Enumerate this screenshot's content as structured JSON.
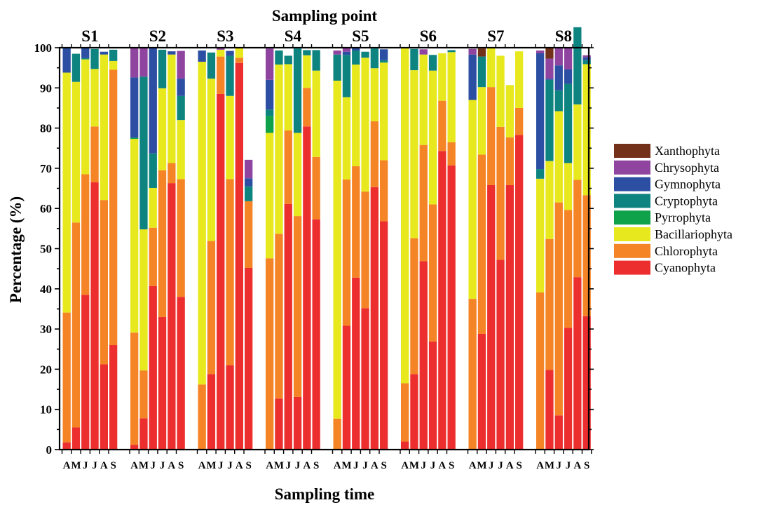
{
  "chart_data": {
    "type": "bar",
    "stacked": true,
    "title": "Sampling point",
    "xlabel": "Sampling time",
    "ylabel": "Percentage (%)",
    "ylim": [
      0,
      100
    ],
    "yticks": [
      0,
      10,
      20,
      30,
      40,
      50,
      60,
      70,
      80,
      90,
      100
    ],
    "grid": false,
    "legend_position": "right",
    "groups": [
      "S1",
      "S2",
      "S3",
      "S4",
      "S5",
      "S6",
      "S7",
      "S8"
    ],
    "months": [
      "A",
      "M",
      "J",
      "J",
      "A",
      "S"
    ],
    "layers": [
      {
        "name": "Cyanophyta",
        "color": "#ED2E2E"
      },
      {
        "name": "Chlorophyta",
        "color": "#F58426"
      },
      {
        "name": "Bacillariophyta",
        "color": "#E8E81E"
      },
      {
        "name": "Pyrrophyta",
        "color": "#10A24A"
      },
      {
        "name": "Cryptophyta",
        "color": "#0E8480"
      },
      {
        "name": "Gymnophyta",
        "color": "#2C4FA3"
      },
      {
        "name": "Chrysophyta",
        "color": "#8F45A0"
      },
      {
        "name": "Xanthophyta",
        "color": "#74311A"
      }
    ],
    "legend_order": [
      "Xanthophyta",
      "Chrysophyta",
      "Gymnophyta",
      "Cryptophyta",
      "Pyrrophyta",
      "Bacillariophyta",
      "Chlorophyta",
      "Cyanophyta"
    ],
    "series": [
      {
        "name": "Cyanophyta",
        "values": [
          [
            1.8,
            5.5,
            38.5,
            66.5,
            21.2,
            26
          ],
          [
            1.2,
            7.8,
            40.7,
            33,
            66.3,
            38
          ],
          [
            0,
            18.8,
            88.5,
            21,
            96.2,
            45.2
          ],
          [
            0,
            12.7,
            61.1,
            13.1,
            80.4,
            57.3
          ],
          [
            0,
            30.8,
            42.8,
            35.2,
            65.3,
            56.8
          ],
          [
            2,
            18.8,
            46.9,
            26.9,
            74.3,
            70.7
          ],
          [
            0,
            28.8,
            65.8,
            47.2,
            65.8,
            78.3
          ],
          [
            0,
            19.8,
            8.5,
            30.3,
            42.9,
            33.2
          ]
        ]
      },
      {
        "name": "Chlorophyta",
        "values": [
          [
            32.3,
            51,
            30,
            13.9,
            40.9,
            68.5
          ],
          [
            27.9,
            11.9,
            14.5,
            36.5,
            5,
            29.3
          ],
          [
            16.2,
            33.1,
            9.3,
            46.3,
            1.3,
            16.6
          ],
          [
            47.6,
            41,
            18.3,
            45,
            9.6,
            15.5
          ],
          [
            7.7,
            36.4,
            27.7,
            29,
            16.4,
            15.2
          ],
          [
            14.5,
            33.8,
            28.9,
            34.1,
            12.5,
            5.8
          ],
          [
            37.5,
            44.6,
            24.4,
            33.1,
            11.9,
            6.7
          ],
          [
            39.1,
            32.6,
            53,
            29.3,
            24.2,
            30.1
          ]
        ]
      },
      {
        "name": "Bacillariophyta",
        "values": [
          [
            59.7,
            35,
            28.6,
            14.3,
            36.2,
            2.2
          ],
          [
            48.2,
            35.1,
            9.9,
            20.4,
            27,
            14.7
          ],
          [
            80.3,
            40.4,
            1.7,
            20.7,
            2.5,
            0
          ],
          [
            31.2,
            42.1,
            16.5,
            20.7,
            8.1,
            21.5
          ],
          [
            84.1,
            20.5,
            25.3,
            33.3,
            13.2,
            24.3
          ],
          [
            83.5,
            41.8,
            22.5,
            33.3,
            11.8,
            22.4
          ],
          [
            49.5,
            16.8,
            9.8,
            17.7,
            13,
            14.1
          ],
          [
            28.3,
            19.4,
            22.7,
            11.7,
            18.8,
            32.6
          ]
        ]
      },
      {
        "name": "Pyrrophyta",
        "values": [
          [
            0,
            0,
            0,
            0,
            0,
            0
          ],
          [
            0.3,
            0,
            0,
            0,
            0,
            0
          ],
          [
            0,
            0,
            0,
            0,
            0,
            0
          ],
          [
            4.2,
            0,
            0,
            0,
            0,
            0
          ],
          [
            0,
            0,
            0,
            0,
            0,
            0
          ],
          [
            0,
            0,
            0,
            0,
            0,
            0
          ],
          [
            0,
            0,
            0,
            0,
            0,
            0
          ],
          [
            0,
            0,
            0,
            0,
            0,
            0
          ]
        ]
      },
      {
        "name": "Cryptophyta",
        "values": [
          [
            0,
            7,
            0.3,
            5,
            0,
            2.8
          ],
          [
            0,
            38,
            8.6,
            9.6,
            0,
            6
          ],
          [
            0,
            6.5,
            0,
            10,
            0,
            3.7
          ],
          [
            1.6,
            3.5,
            2.1,
            21,
            1.3,
            5.1
          ],
          [
            6.5,
            10.5,
            3.5,
            1.5,
            4.9,
            0.6
          ],
          [
            0,
            5.3,
            0,
            3.9,
            0,
            0.5
          ],
          [
            0,
            7.6,
            0,
            0,
            0,
            0
          ],
          [
            2.4,
            20.2,
            5.2,
            19.7,
            19.2,
            1
          ]
        ]
      },
      {
        "name": "Gymnophyta",
        "values": [
          [
            6.2,
            0,
            2.6,
            0,
            0.7,
            0
          ],
          [
            15,
            0,
            26.2,
            0,
            0.8,
            4.3
          ],
          [
            2.8,
            0,
            0,
            1.2,
            0,
            2
          ],
          [
            7.4,
            0,
            0,
            0,
            0,
            0
          ],
          [
            0,
            0.8,
            0.8,
            0,
            0,
            2.7
          ],
          [
            0,
            0,
            0,
            0,
            0,
            0
          ],
          [
            11.3,
            0,
            0,
            0,
            0,
            0
          ],
          [
            28.8,
            0.3,
            6.2,
            3.6,
            0,
            0.7
          ]
        ]
      },
      {
        "name": "Chrysophyta",
        "values": [
          [
            0,
            0,
            0,
            0,
            0,
            0
          ],
          [
            7.5,
            7.2,
            0,
            0,
            0,
            6.9
          ],
          [
            0,
            0,
            0.5,
            0,
            0,
            4.6
          ],
          [
            7.8,
            0,
            0,
            0,
            0,
            0
          ],
          [
            1,
            1,
            0,
            0,
            0,
            0
          ],
          [
            0,
            0,
            1.3,
            0,
            0,
            0
          ],
          [
            1.4,
            0,
            0,
            0,
            0,
            0
          ],
          [
            0.7,
            5,
            4.5,
            5.4,
            0,
            0.5
          ]
        ]
      },
      {
        "name": "Xanthophyta",
        "values": [
          [
            0,
            0,
            0,
            0,
            0,
            0
          ],
          [
            0,
            0,
            0,
            0,
            0,
            0
          ],
          [
            0,
            0,
            0,
            0,
            0,
            0
          ],
          [
            0,
            0,
            0,
            0,
            0,
            0
          ],
          [
            0,
            0,
            0,
            0,
            0,
            0
          ],
          [
            0,
            0,
            0,
            0,
            0,
            0
          ],
          [
            0,
            2,
            0,
            0,
            0,
            0
          ],
          [
            0,
            2.7,
            0,
            0,
            0,
            0
          ]
        ]
      }
    ]
  }
}
